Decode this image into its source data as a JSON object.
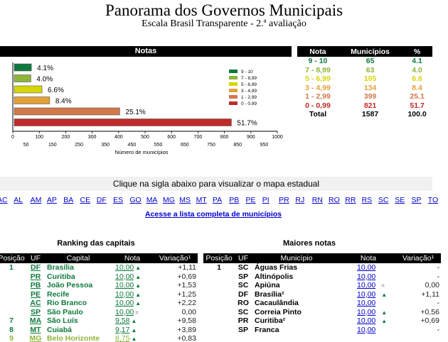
{
  "header": {
    "title": "Panorama dos Governos Municipais",
    "subtitle": "Escala Brasil Transparente - 2.ª avaliação"
  },
  "colors": {
    "c9_10": "#0d7a3c",
    "c7_899": "#8fb43a",
    "c5_699": "#d6d60a",
    "c3_499": "#e3a13a",
    "c1_299": "#d2784a",
    "c0_099": "#c02a2a"
  },
  "chart_data": {
    "type": "bar",
    "title": "Notas",
    "orientation": "horizontal",
    "categories": [
      "9 - 10",
      "7 - 8,99",
      "5 - 6,99",
      "3 - 4,99",
      "1 - 2,99",
      "0 - 0,99"
    ],
    "values": [
      65,
      63,
      105,
      134,
      399,
      821
    ],
    "labels": [
      "4.1%",
      "4.0%",
      "6.6%",
      "8.4%",
      "25.1%",
      "51.7%"
    ],
    "colors": [
      "#0d7a3c",
      "#8fb43a",
      "#d6d60a",
      "#e3a13a",
      "#d2784a",
      "#c02a2a"
    ],
    "xlabel": "Número de municípios",
    "xlim": [
      0,
      1000
    ],
    "ticks_major": [
      "0",
      "100",
      "200",
      "300",
      "400",
      "500",
      "600",
      "700",
      "800",
      "900",
      "1000"
    ],
    "ticks_minor": [
      "50",
      "150",
      "250",
      "350",
      "450",
      "550",
      "650",
      "750",
      "850",
      "950"
    ],
    "legend_position": "right"
  },
  "stats": {
    "headers": [
      "Nota",
      "Municípios",
      "%"
    ],
    "rows": [
      {
        "nota": "9 - 10",
        "municipios": "65",
        "pct": "4.1"
      },
      {
        "nota": "7 - 8,99",
        "municipios": "63",
        "pct": "4.0"
      },
      {
        "nota": "5 - 6,99",
        "municipios": "105",
        "pct": "6.6"
      },
      {
        "nota": "3 - 4,99",
        "municipios": "134",
        "pct": "8.4"
      },
      {
        "nota": "1 - 2,99",
        "municipios": "399",
        "pct": "25.1"
      },
      {
        "nota": "0 - 0,99",
        "municipios": "821",
        "pct": "51.7"
      }
    ],
    "total": {
      "nota": "Total",
      "municipios": "1587",
      "pct": "100.0"
    }
  },
  "clique_text": "Clique na sigla abaixo para visualizar o mapa estadual",
  "ufs": [
    "AC",
    "AL",
    "AM",
    "AP",
    "BA",
    "CE",
    "DF",
    "ES",
    "GO",
    "MA",
    "MG",
    "MS",
    "MT",
    "PA",
    "PB",
    "PE",
    "PI",
    "PR",
    "RJ",
    "RN",
    "RO",
    "RR",
    "RS",
    "SC",
    "SE",
    "SP",
    "TO"
  ],
  "lista_link": "Acesse a lista completa de municípios",
  "ranking": {
    "title": "Ranking das capitais",
    "headers": [
      "Posição",
      "UF",
      "Capital",
      "Nota",
      "Variação¹"
    ],
    "rows": [
      {
        "pos": "1",
        "uf": "DF",
        "capital": "Brasília",
        "nota": "10,00",
        "arrow": "▲",
        "var": "+1,11"
      },
      {
        "pos": "",
        "uf": "PR",
        "capital": "Curitiba",
        "nota": "10,00",
        "arrow": "▲",
        "var": "+0,69"
      },
      {
        "pos": "",
        "uf": "PB",
        "capital": "João Pessoa",
        "nota": "10,00",
        "arrow": "▲",
        "var": "+1,53"
      },
      {
        "pos": "",
        "uf": "PE",
        "capital": "Recife",
        "nota": "10,00",
        "arrow": "▲",
        "var": "+1,25"
      },
      {
        "pos": "",
        "uf": "AC",
        "capital": "Rio Branco",
        "nota": "10,00",
        "arrow": "▲",
        "var": "+2,22"
      },
      {
        "pos": "",
        "uf": "SP",
        "capital": "São Paulo",
        "nota": "10,00",
        "arrow": "=",
        "var": "0,00"
      },
      {
        "pos": "7",
        "uf": "MA",
        "capital": "São Luís",
        "nota": "9,58",
        "arrow": "▲",
        "var": "+9,58"
      },
      {
        "pos": "8",
        "uf": "MT",
        "capital": "Cuiabá",
        "nota": "9,17",
        "arrow": "▲",
        "var": "+3,89"
      },
      {
        "pos": "9",
        "uf": "MG",
        "capital": "Belo Horizonte",
        "nota": "8,75",
        "arrow": "▲",
        "var": "+0,83"
      }
    ]
  },
  "maiores": {
    "title": "Maiores notas",
    "headers": [
      "Posição",
      "UF",
      "Município",
      "Nota",
      "Variação¹"
    ],
    "rows": [
      {
        "pos": "1",
        "uf": "SC",
        "mun": "Águas Frias",
        "nota": "10,00",
        "arrow": "",
        "var": "-"
      },
      {
        "pos": "",
        "uf": "SP",
        "mun": "Altinópolis",
        "nota": "10,00",
        "arrow": "",
        "var": "-"
      },
      {
        "pos": "",
        "uf": "SC",
        "mun": "Apiúna",
        "nota": "10,00",
        "arrow": "=",
        "var": "0,00"
      },
      {
        "pos": "",
        "uf": "DF",
        "mun": "Brasília²",
        "nota": "10,00",
        "arrow": "▲",
        "var": "+1,11"
      },
      {
        "pos": "",
        "uf": "RO",
        "mun": "Cacaulândia",
        "nota": "10,00",
        "arrow": "",
        "var": "-"
      },
      {
        "pos": "",
        "uf": "SC",
        "mun": "Correia Pinto",
        "nota": "10,00",
        "arrow": "▲",
        "var": "+0,56"
      },
      {
        "pos": "",
        "uf": "PR",
        "mun": "Curitiba²",
        "nota": "10,00",
        "arrow": "▲",
        "var": "+0,69"
      },
      {
        "pos": "",
        "uf": "SP",
        "mun": "Franca",
        "nota": "10,00",
        "arrow": "",
        "var": "-"
      }
    ]
  }
}
